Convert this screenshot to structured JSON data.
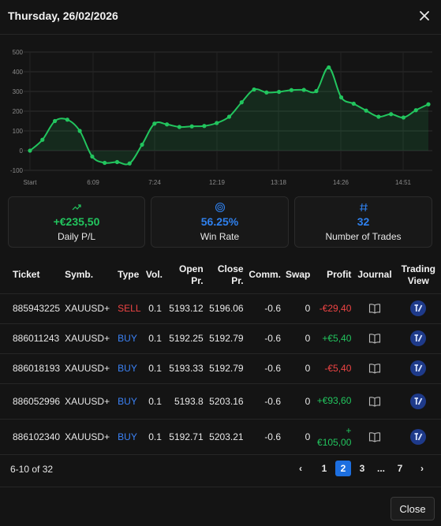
{
  "dialog": {
    "title": "Thursday, 26/02/2026",
    "close_label": "Close"
  },
  "chart_data": {
    "type": "line",
    "x_tick_labels": [
      "Start",
      "6:09",
      "7:24",
      "12:19",
      "13:18",
      "14:26",
      "14:51"
    ],
    "y_ticks": [
      "500",
      "400",
      "300",
      "200",
      "100",
      "0",
      "-100"
    ],
    "ylim": [
      -100,
      500
    ],
    "grid": true,
    "line_color": "#22c55e",
    "values": [
      0,
      55,
      150,
      157,
      100,
      -30,
      -62,
      -58,
      -65,
      30,
      137,
      133,
      120,
      123,
      125,
      140,
      172,
      245,
      310,
      295,
      298,
      307,
      308,
      302,
      422,
      270,
      238,
      203,
      172,
      185,
      168,
      205,
      235
    ]
  },
  "stats": [
    {
      "icon": "trending-up-icon",
      "value": "+€235,50",
      "label": "Daily P/L",
      "color": "#22c55e"
    },
    {
      "icon": "target-icon",
      "value": "56.25%",
      "label": "Win Rate",
      "color": "#2f80ed"
    },
    {
      "icon": "hash-icon",
      "value": "32",
      "label": "Number of Trades",
      "color": "#2f80ed"
    }
  ],
  "table": {
    "headers": {
      "ticket": "Ticket",
      "symbol": "Symb.",
      "type": "Type",
      "volume": "Vol.",
      "open_price": "Open Pr.",
      "close_price": "Close Pr.",
      "commission": "Comm.",
      "swap": "Swap",
      "profit": "Profit",
      "journal": "Journal",
      "trading_view": "Trading View"
    },
    "rows": [
      {
        "ticket": "885943225",
        "symbol": "XAUUSD+",
        "type": "SELL",
        "volume": "0.1",
        "open_price": "5193.12",
        "close_price": "5196.06",
        "commission": "-0.6",
        "swap": "0",
        "profit": "-€29,40"
      },
      {
        "ticket": "886011243",
        "symbol": "XAUUSD+",
        "type": "BUY",
        "volume": "0.1",
        "open_price": "5192.25",
        "close_price": "5192.79",
        "commission": "-0.6",
        "swap": "0",
        "profit": "+€5,40"
      },
      {
        "ticket": "886018193",
        "symbol": "XAUUSD+",
        "type": "BUY",
        "volume": "0.1",
        "open_price": "5193.33",
        "close_price": "5192.79",
        "commission": "-0.6",
        "swap": "0",
        "profit": "-€5,40"
      },
      {
        "ticket": "886052996",
        "symbol": "XAUUSD+",
        "type": "BUY",
        "volume": "0.1",
        "open_price": "5193.8",
        "close_price": "5203.16",
        "commission": "-0.6",
        "swap": "0",
        "profit": "+€93,60"
      },
      {
        "ticket": "886102340",
        "symbol": "XAUUSD+",
        "type": "BUY",
        "volume": "0.1",
        "open_price": "5192.71",
        "close_price": "5203.21",
        "commission": "-0.6",
        "swap": "0",
        "profit": "+€105,00"
      }
    ]
  },
  "pagination": {
    "range": "6-10 of 32",
    "prev": "‹",
    "next": "›",
    "pages": [
      "1",
      "2",
      "3",
      "...",
      "7"
    ],
    "current": "2"
  }
}
